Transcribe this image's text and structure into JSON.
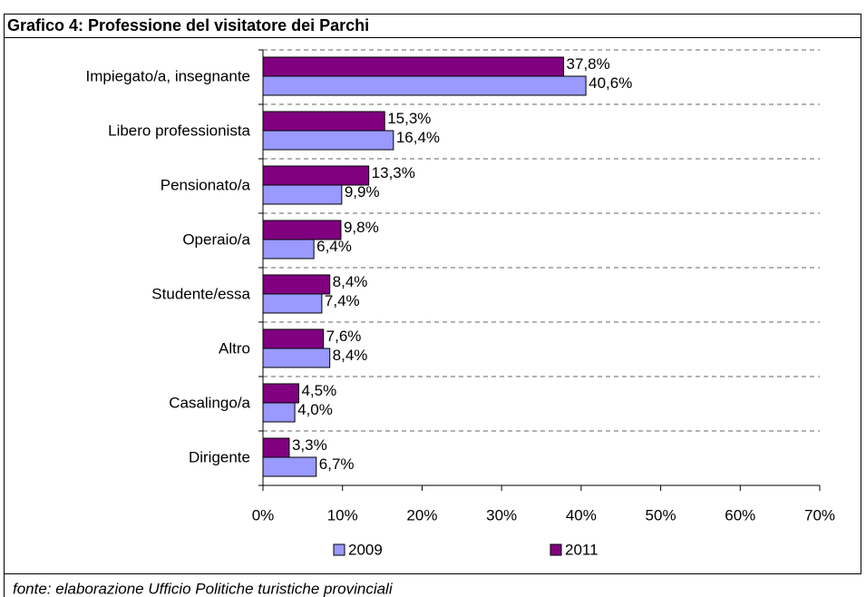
{
  "chart_data": {
    "type": "bar",
    "orientation": "horizontal",
    "title": "Grafico 4: Professione del visitatore dei Parchi",
    "source": "fonte: elaborazione Ufficio Politiche turistiche provinciali",
    "categories": [
      "Impiegato/a, insegnante",
      "Libero professionista",
      "Pensionato/a",
      "Operaio/a",
      "Studente/essa",
      "Altro",
      "Casalingo/a",
      "Dirigente"
    ],
    "series": [
      {
        "name": "2009",
        "color": "#9999ff",
        "values": [
          40.6,
          16.4,
          9.9,
          6.4,
          7.4,
          8.4,
          4.0,
          6.7
        ],
        "value_labels": [
          "40,6%",
          "16,4%",
          "9,9%",
          "6,4%",
          "7,4%",
          "8,4%",
          "4,0%",
          "6,7%"
        ]
      },
      {
        "name": "2011",
        "color": "#800080",
        "values": [
          37.8,
          15.3,
          13.3,
          9.8,
          8.4,
          7.6,
          4.5,
          3.3
        ],
        "value_labels": [
          "37,8%",
          "15,3%",
          "13,3%",
          "9,8%",
          "8,4%",
          "7,6%",
          "4,5%",
          "3,3%"
        ]
      }
    ],
    "xlim": [
      0,
      70
    ],
    "xticks": [
      {
        "value": 0,
        "label": "0%"
      },
      {
        "value": 10,
        "label": "10%"
      },
      {
        "value": 20,
        "label": "20%"
      },
      {
        "value": 30,
        "label": "30%"
      },
      {
        "value": 40,
        "label": "40%"
      },
      {
        "value": 50,
        "label": "50%"
      },
      {
        "value": 60,
        "label": "60%"
      },
      {
        "value": 70,
        "label": "70%"
      }
    ],
    "grid": true,
    "legend": "bottom"
  }
}
